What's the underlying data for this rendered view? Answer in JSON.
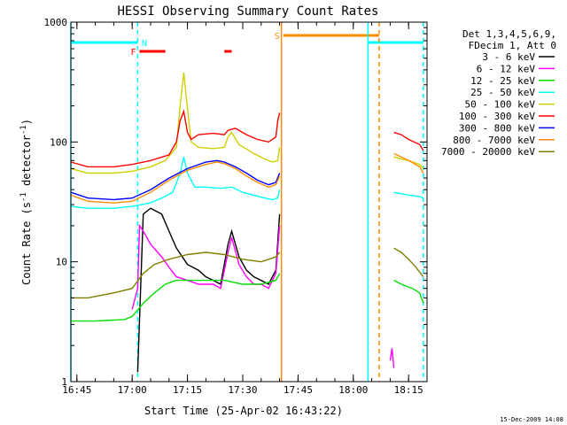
{
  "chart_data": {
    "type": "line",
    "title": "HESSI Observing Summary Count Rates",
    "xlabel": "Start Time (25-Apr-02 16:43:22)",
    "ylabel": "Count Rate (s⁻¹ detector⁻¹)",
    "ylabel_parts": {
      "main": "Count Rate (s",
      "sup1": "-1",
      "mid": " detector",
      "sup2": "-1",
      "end": ")"
    },
    "y_scale": "log",
    "xlim": [
      "16:43:22",
      "18:20:00"
    ],
    "ylim": [
      1,
      1000
    ],
    "x_ticks": [
      "16:45",
      "17:00",
      "17:15",
      "17:30",
      "17:45",
      "18:00",
      "18:15"
    ],
    "y_ticks": [
      "1",
      "10",
      "100",
      "1000"
    ],
    "legend_position": "right",
    "legend_header": [
      "Det 1,3,4,5,6,9,",
      "FDecim 1, Att 0"
    ],
    "series": [
      {
        "name": "3 - 6 keV",
        "color": "#000000",
        "x": [
          "17:01:30",
          "17:03",
          "17:05",
          "17:08",
          "17:10",
          "17:12",
          "17:15",
          "17:18",
          "17:20",
          "17:22",
          "17:24",
          "17:26",
          "17:27",
          "17:29",
          "17:31",
          "17:33",
          "17:35",
          "17:37",
          "17:39",
          "17:40"
        ],
        "y": [
          1.2,
          25,
          28,
          25,
          18,
          13,
          9.5,
          8.5,
          7.5,
          7,
          6.5,
          14,
          18,
          11,
          8.5,
          7.5,
          7,
          6.5,
          8.5,
          25
        ]
      },
      {
        "name": "6 - 12 keV",
        "color": "#ff00ff",
        "x": [
          "17:00",
          "17:01:30",
          "17:02",
          "17:03",
          "17:05",
          "17:08",
          "17:10",
          "17:12",
          "17:15",
          "17:18",
          "17:20",
          "17:22",
          "17:24",
          "17:26",
          "17:27",
          "17:29",
          "17:31",
          "17:33",
          "17:35",
          "17:37",
          "17:39",
          "17:40",
          "18:10",
          "18:10:30",
          "18:11"
        ],
        "y": [
          4,
          6,
          20,
          18,
          14,
          11,
          9,
          7.5,
          7,
          6.5,
          6.5,
          6.5,
          6,
          12,
          16,
          9.5,
          7.5,
          6.5,
          6.5,
          6,
          8,
          20,
          1.5,
          1.9,
          1.3
        ]
      },
      {
        "name": "12 - 25 keV",
        "color": "#00e000",
        "x": [
          "16:43:22",
          "16:50",
          "16:58",
          "17:00",
          "17:03",
          "17:06",
          "17:09",
          "17:12",
          "17:15",
          "17:20",
          "17:25",
          "17:30",
          "17:35",
          "17:39",
          "17:40",
          "18:11",
          "18:13",
          "18:16",
          "18:18",
          "18:19"
        ],
        "y": [
          3.2,
          3.2,
          3.3,
          3.5,
          4.5,
          5.5,
          6.5,
          7,
          7,
          7,
          7,
          6.5,
          6.5,
          7,
          8,
          7,
          6.5,
          6,
          5.5,
          4.5
        ]
      },
      {
        "name": "25 - 50 keV",
        "color": "#00ffff",
        "x": [
          "16:43:22",
          "16:48",
          "16:55",
          "17:00",
          "17:05",
          "17:08",
          "17:11",
          "17:13",
          "17:14",
          "17:15",
          "17:17",
          "17:20",
          "17:24",
          "17:27",
          "17:30",
          "17:33",
          "17:36",
          "17:38",
          "17:39:30",
          "17:40",
          "18:11",
          "18:13",
          "18:15",
          "18:18",
          "18:19"
        ],
        "y": [
          29,
          28,
          28,
          29,
          31,
          34,
          38,
          55,
          75,
          55,
          42,
          42,
          41,
          42,
          38,
          36,
          34,
          33,
          34,
          40,
          38,
          37,
          36,
          35,
          34
        ]
      },
      {
        "name": "50 - 100 keV",
        "color": "#d0d000",
        "x": [
          "16:43:22",
          "16:48",
          "16:55",
          "17:00",
          "17:05",
          "17:09",
          "17:12",
          "17:13",
          "17:14",
          "17:15",
          "17:16",
          "17:18",
          "17:22",
          "17:25",
          "17:26",
          "17:27",
          "17:29",
          "17:33",
          "17:36",
          "17:38",
          "17:39:30",
          "17:40",
          "18:11",
          "18:13",
          "18:15",
          "18:18",
          "18:19"
        ],
        "y": [
          60,
          55,
          55,
          57,
          62,
          70,
          90,
          200,
          380,
          190,
          100,
          90,
          88,
          90,
          110,
          120,
          95,
          80,
          72,
          68,
          70,
          90,
          75,
          72,
          70,
          65,
          60
        ]
      },
      {
        "name": "100 - 300 keV",
        "color": "#ff0000",
        "x": [
          "16:43:22",
          "16:48",
          "16:55",
          "17:00",
          "17:05",
          "17:10",
          "17:12",
          "17:13",
          "17:14",
          "17:15",
          "17:16",
          "17:18",
          "17:22",
          "17:25",
          "17:26",
          "17:28",
          "17:31",
          "17:34",
          "17:37",
          "17:39",
          "17:39:30",
          "17:40",
          "18:11",
          "18:13",
          "18:15",
          "18:18",
          "18:19"
        ],
        "y": [
          68,
          62,
          62,
          65,
          70,
          78,
          100,
          150,
          180,
          120,
          105,
          115,
          118,
          115,
          125,
          130,
          115,
          105,
          100,
          110,
          150,
          175,
          120,
          115,
          105,
          95,
          85
        ]
      },
      {
        "name": "300 - 800 keV",
        "color": "#0000ff",
        "x": [
          "16:43:22",
          "16:48",
          "16:55",
          "17:00",
          "17:05",
          "17:10",
          "17:15",
          "17:20",
          "17:23",
          "17:25",
          "17:28",
          "17:31",
          "17:34",
          "17:37",
          "17:39",
          "17:40"
        ],
        "y": [
          38,
          34,
          33,
          34,
          40,
          50,
          60,
          68,
          70,
          68,
          62,
          55,
          48,
          44,
          46,
          55
        ]
      },
      {
        "name": "800 - 7000 keV",
        "color": "#ff8c00",
        "x": [
          "16:43:22",
          "16:48",
          "16:55",
          "17:00",
          "17:05",
          "17:10",
          "17:15",
          "17:20",
          "17:23",
          "17:25",
          "17:28",
          "17:31",
          "17:34",
          "17:37",
          "17:39",
          "17:40",
          "18:11",
          "18:13",
          "18:15",
          "18:18",
          "18:19"
        ],
        "y": [
          36,
          32,
          31,
          32,
          38,
          48,
          58,
          65,
          68,
          66,
          60,
          52,
          46,
          42,
          44,
          52,
          80,
          75,
          70,
          62,
          55
        ]
      },
      {
        "name": "7000 - 20000 keV",
        "color": "#808000",
        "x": [
          "16:43:22",
          "16:48",
          "16:55",
          "17:00",
          "17:03",
          "17:06",
          "17:10",
          "17:15",
          "17:20",
          "17:25",
          "17:30",
          "17:35",
          "17:39",
          "17:40",
          "18:11",
          "18:13",
          "18:15",
          "18:17",
          "18:19"
        ],
        "y": [
          5,
          5,
          5.5,
          6,
          8,
          9.5,
          10.5,
          11.5,
          12,
          11.5,
          10.5,
          10,
          11,
          12,
          13,
          12,
          10.5,
          9,
          7.5
        ]
      }
    ],
    "flag_bars": [
      {
        "label": "N",
        "color": "#00ffff",
        "segments": [
          [
            "16:43:22",
            "17:01:30"
          ],
          [
            "18:04",
            "18:19"
          ]
        ]
      },
      {
        "label": "F",
        "color": "#ff0000",
        "segments": [
          [
            "17:02",
            "17:09"
          ],
          [
            "17:25",
            "17:27"
          ]
        ]
      },
      {
        "label": "S",
        "color": "#ff8c00",
        "segments": [
          [
            "17:41",
            "18:07"
          ]
        ]
      }
    ],
    "vlines": [
      {
        "x": "16:43:22",
        "color": "#00ffff",
        "style": "solid"
      },
      {
        "x": "17:01:30",
        "color": "#00ffff",
        "style": "dashed"
      },
      {
        "x": "17:40:30",
        "color": "#ff8c00",
        "style": "solid"
      },
      {
        "x": "18:04",
        "color": "#00ffff",
        "style": "solid"
      },
      {
        "x": "18:07",
        "color": "#ff8c00",
        "style": "dashed"
      },
      {
        "x": "18:19",
        "color": "#00ffff",
        "style": "dashed"
      }
    ]
  },
  "footer_timestamp": "15-Dec-2009 14:08"
}
